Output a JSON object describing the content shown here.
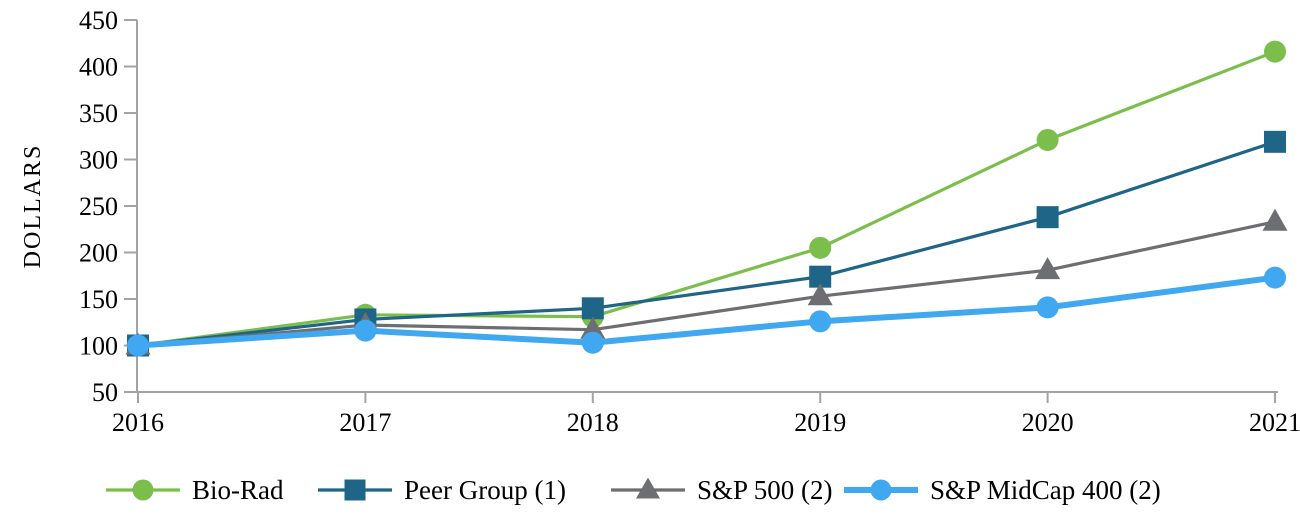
{
  "chart_data": {
    "type": "line",
    "title": "",
    "xlabel": "",
    "ylabel": "DOLLARS",
    "categories": [
      "2016",
      "2017",
      "2018",
      "2019",
      "2020",
      "2021"
    ],
    "y_ticks": [
      450,
      400,
      350,
      300,
      250,
      200,
      150,
      100,
      50
    ],
    "ylim": [
      50,
      450
    ],
    "grid": false,
    "legend_position": "bottom",
    "axis_color": "#a3a3a3",
    "text_color": "#000000",
    "series": [
      {
        "name": "Bio-Rad",
        "color": "#7cbe4c",
        "marker": "circle",
        "line_width": 3.2,
        "values": [
          100,
          133,
          131,
          205,
          321,
          416
        ]
      },
      {
        "name": "Peer Group (1)",
        "color": "#1f6588",
        "marker": "square",
        "line_width": 3.2,
        "values": [
          100,
          128,
          140,
          174,
          238,
          319
        ]
      },
      {
        "name": "S&P 500 (2)",
        "color": "#6d6e71",
        "marker": "triangle",
        "line_width": 3.2,
        "values": [
          100,
          122,
          117,
          153,
          181,
          233
        ]
      },
      {
        "name": "S&P MidCap 400 (2)",
        "color": "#3fa8f0",
        "marker": "circle",
        "line_width": 6,
        "values": [
          100,
          116,
          103,
          126,
          141,
          173
        ]
      }
    ],
    "legend_item_lefts": [
      104,
      316,
      609,
      842
    ]
  }
}
